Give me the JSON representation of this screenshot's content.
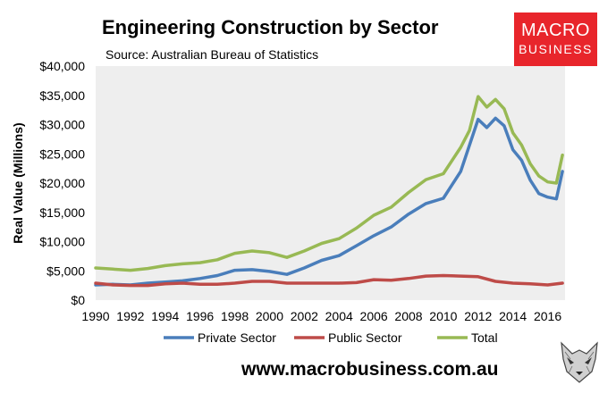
{
  "chart_data": {
    "type": "line",
    "title": "Engineering Construction by Sector",
    "subtitle": "Source: Australian Bureau of Statistics",
    "ylabel": "Real Value (Millions)",
    "xlabel": "",
    "xlim": [
      1990,
      2017
    ],
    "ylim": [
      0,
      40000
    ],
    "x_ticks": [
      1990,
      1992,
      1994,
      1996,
      1998,
      2000,
      2002,
      2004,
      2006,
      2008,
      2010,
      2012,
      2014,
      2016
    ],
    "y_ticks": [
      0,
      5000,
      10000,
      15000,
      20000,
      25000,
      30000,
      35000,
      40000
    ],
    "y_tick_labels": [
      "$0",
      "$5,000",
      "$10,000",
      "$15,000",
      "$20,000",
      "$25,000",
      "$30,000",
      "$35,000",
      "$40,000"
    ],
    "grid": false,
    "legend_position": "bottom",
    "series": [
      {
        "name": "Private Sector",
        "color": "#4a7ebb",
        "points": [
          [
            1990,
            2600
          ],
          [
            1991,
            2700
          ],
          [
            1992,
            2600
          ],
          [
            1993,
            2900
          ],
          [
            1994,
            3100
          ],
          [
            1995,
            3300
          ],
          [
            1996,
            3700
          ],
          [
            1997,
            4200
          ],
          [
            1998,
            5100
          ],
          [
            1999,
            5200
          ],
          [
            2000,
            4900
          ],
          [
            2001,
            4400
          ],
          [
            2002,
            5500
          ],
          [
            2003,
            6800
          ],
          [
            2004,
            7600
          ],
          [
            2005,
            9300
          ],
          [
            2006,
            11000
          ],
          [
            2007,
            12500
          ],
          [
            2008,
            14700
          ],
          [
            2009,
            16500
          ],
          [
            2010,
            17400
          ],
          [
            2011,
            22000
          ],
          [
            2012,
            30900
          ],
          [
            2012.5,
            29500
          ],
          [
            2013,
            31100
          ],
          [
            2013.5,
            29800
          ],
          [
            2014,
            25700
          ],
          [
            2014.5,
            23900
          ],
          [
            2015,
            20500
          ],
          [
            2015.5,
            18200
          ],
          [
            2016,
            17600
          ],
          [
            2016.5,
            17300
          ],
          [
            2016.85,
            22000
          ]
        ]
      },
      {
        "name": "Public Sector",
        "color": "#be4b48",
        "points": [
          [
            1990,
            2900
          ],
          [
            1991,
            2600
          ],
          [
            1992,
            2500
          ],
          [
            1993,
            2500
          ],
          [
            1994,
            2800
          ],
          [
            1995,
            2900
          ],
          [
            1996,
            2700
          ],
          [
            1997,
            2700
          ],
          [
            1998,
            2900
          ],
          [
            1999,
            3200
          ],
          [
            2000,
            3200
          ],
          [
            2001,
            2900
          ],
          [
            2002,
            2900
          ],
          [
            2003,
            2900
          ],
          [
            2004,
            2900
          ],
          [
            2005,
            3000
          ],
          [
            2006,
            3500
          ],
          [
            2007,
            3400
          ],
          [
            2008,
            3700
          ],
          [
            2009,
            4100
          ],
          [
            2010,
            4200
          ],
          [
            2011,
            4100
          ],
          [
            2012,
            4000
          ],
          [
            2013,
            3200
          ],
          [
            2014,
            2900
          ],
          [
            2015,
            2800
          ],
          [
            2016,
            2600
          ],
          [
            2016.85,
            2900
          ]
        ]
      },
      {
        "name": "Total",
        "color": "#98b954",
        "points": [
          [
            1990,
            5500
          ],
          [
            1991,
            5300
          ],
          [
            1992,
            5100
          ],
          [
            1993,
            5400
          ],
          [
            1994,
            5900
          ],
          [
            1995,
            6200
          ],
          [
            1996,
            6400
          ],
          [
            1997,
            6900
          ],
          [
            1998,
            8000
          ],
          [
            1999,
            8400
          ],
          [
            2000,
            8100
          ],
          [
            2001,
            7300
          ],
          [
            2002,
            8400
          ],
          [
            2003,
            9700
          ],
          [
            2004,
            10500
          ],
          [
            2005,
            12300
          ],
          [
            2006,
            14500
          ],
          [
            2007,
            15900
          ],
          [
            2008,
            18400
          ],
          [
            2009,
            20600
          ],
          [
            2010,
            21600
          ],
          [
            2011,
            26100
          ],
          [
            2011.5,
            29000
          ],
          [
            2012,
            34800
          ],
          [
            2012.5,
            33000
          ],
          [
            2013,
            34300
          ],
          [
            2013.5,
            32700
          ],
          [
            2014,
            28600
          ],
          [
            2014.5,
            26500
          ],
          [
            2015,
            23300
          ],
          [
            2015.5,
            21200
          ],
          [
            2016,
            20200
          ],
          [
            2016.5,
            20000
          ],
          [
            2016.85,
            24800
          ]
        ]
      }
    ]
  },
  "logo": {
    "line1": "MACRO",
    "line2": "BUSINESS"
  },
  "footer": {
    "url": "www.macrobusiness.com.au"
  },
  "icons": {
    "mascot": "wolf-icon"
  }
}
